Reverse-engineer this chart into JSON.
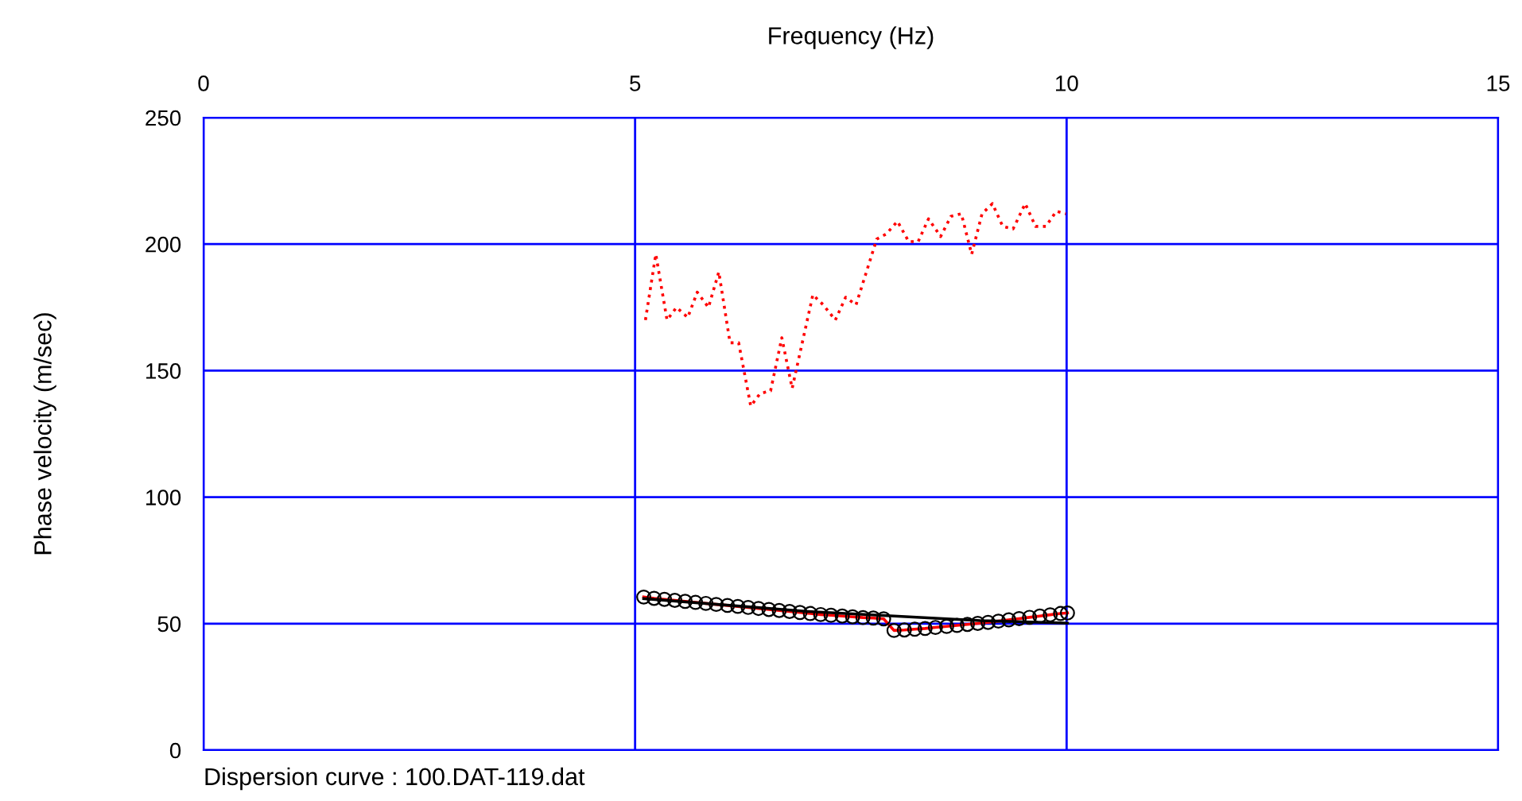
{
  "chart_data": {
    "type": "line",
    "xlabel": "Frequency (Hz)",
    "ylabel": "Phase velocity (m/sec)",
    "xlim": [
      0,
      15
    ],
    "xticks": [
      0,
      5,
      10,
      15
    ],
    "ylim": [
      0,
      250
    ],
    "yticks": [
      0,
      50,
      100,
      150,
      200,
      250
    ],
    "grid": true,
    "legend": false,
    "annotations": [
      "Dispersion curve : 100.DAT-119.dat"
    ],
    "series": [
      {
        "color": "#ff0000",
        "line_style": "dotted",
        "marker": "none",
        "x": [
          5.12,
          5.24,
          5.37,
          5.48,
          5.61,
          5.72,
          5.85,
          5.97,
          6.1,
          6.2,
          6.34,
          6.45,
          6.57,
          6.7,
          6.82,
          7.06,
          7.18,
          7.32,
          7.44,
          7.56,
          7.8,
          7.91,
          8.04,
          8.17,
          8.28,
          8.4,
          8.54,
          8.66,
          8.78,
          8.9,
          9.02,
          9.14,
          9.26,
          9.38,
          9.52,
          9.64,
          9.76,
          9.88,
          9.99
        ],
        "values": [
          170,
          196,
          170,
          175,
          171,
          181,
          175,
          189,
          161,
          161,
          136,
          141,
          142,
          163,
          143,
          180,
          176,
          170,
          179,
          176,
          202,
          204,
          209,
          201,
          201,
          210,
          203,
          211,
          212,
          196,
          212,
          216,
          207,
          206,
          216,
          207,
          207,
          213,
          212
        ]
      },
      {
        "color": "#ff0000",
        "line_style": "solid",
        "marker": "circle",
        "x": [
          5.1,
          5.22,
          5.34,
          5.46,
          5.58,
          5.7,
          5.82,
          5.94,
          6.07,
          6.19,
          6.31,
          6.43,
          6.55,
          6.67,
          6.79,
          6.91,
          7.03,
          7.15,
          7.27,
          7.4,
          7.52,
          7.64,
          7.76,
          7.88,
          8.0,
          8.12,
          8.24,
          8.36,
          8.48,
          8.61,
          8.73,
          8.85,
          8.97,
          9.09,
          9.21,
          9.33,
          9.45,
          9.57,
          9.69,
          9.81,
          9.93,
          10.01
        ],
        "values": [
          60.5,
          60,
          59.6,
          59.2,
          58.8,
          58.4,
          58,
          57.6,
          57.2,
          56.8,
          56.4,
          56,
          55.6,
          55.2,
          54.8,
          54.4,
          54,
          53.6,
          53.3,
          53,
          52.7,
          52.4,
          52.2,
          51.9,
          47.3,
          47.5,
          47.8,
          48.1,
          48.5,
          48.9,
          49.3,
          49.7,
          50.1,
          50.5,
          51,
          51.5,
          52,
          52.5,
          53,
          53.5,
          54,
          54.2
        ]
      },
      {
        "color": "#000000",
        "line_style": "solid",
        "x": [
          5.1,
          7.0,
          9.0,
          10.01
        ],
        "values": [
          59.9,
          54.8,
          51.2,
          50.2
        ]
      }
    ]
  }
}
